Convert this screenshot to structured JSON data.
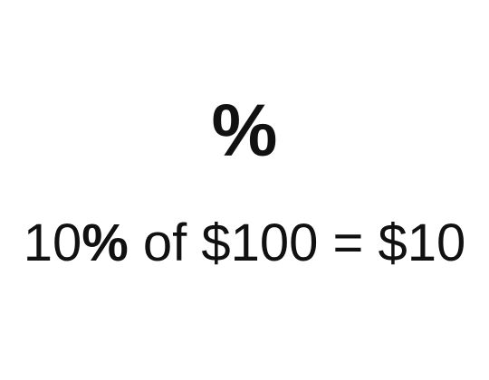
{
  "symbol": "%",
  "equation": {
    "number": "10",
    "percent": "%",
    "rest": " of $100 = $10"
  },
  "colors": {
    "background": "#ffffff",
    "text": "#111111"
  }
}
